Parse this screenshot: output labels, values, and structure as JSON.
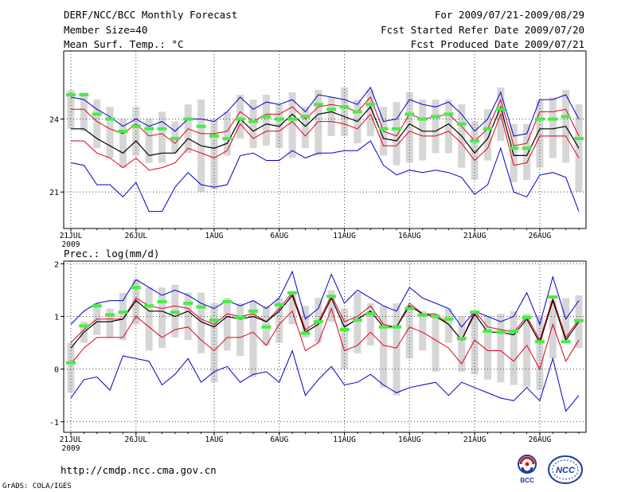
{
  "header": {
    "title": "DERF/NCC/BCC Monthly Forecast",
    "member_size": "Member Size=40",
    "variable": "Mean Surf. Temp.: °C",
    "period": "For 2009/07/21-2009/08/29",
    "start_date": "Fcst Started Refer Date 2009/07/20",
    "produced_date": "Fcst Produced Date 2009/07/21"
  },
  "footer": {
    "url": "http://cmdp.ncc.cma.gov.cn",
    "credit": "GrADS: COLA/IGES",
    "logo_bcc": "BCC",
    "logo_ncc": "NCC"
  },
  "colors": {
    "max_min": "#0000c8",
    "plus_minus_sd": "#e0001a",
    "mean": "#000000",
    "spread_bar": "#d6d6d6",
    "median": "#44ee44"
  },
  "x_ticks": [
    {
      "day": 0,
      "label": "21JUL",
      "sub": "2009"
    },
    {
      "day": 5,
      "label": "26JUL",
      "sub": ""
    },
    {
      "day": 11,
      "label": "1AUG",
      "sub": ""
    },
    {
      "day": 16,
      "label": "6AUG",
      "sub": ""
    },
    {
      "day": 21,
      "label": "11AUG",
      "sub": ""
    },
    {
      "day": 26,
      "label": "16AUG",
      "sub": ""
    },
    {
      "day": 31,
      "label": "21AUG",
      "sub": ""
    },
    {
      "day": 36,
      "label": "26AUG",
      "sub": ""
    }
  ],
  "chart_data": [
    {
      "type": "line",
      "title": "Mean Surf. Temp.: °C",
      "ylabel": "Mean Surf. Temp. (°C)",
      "ylim": [
        19.5,
        26.8
      ],
      "yticks": [
        21,
        24
      ],
      "days": 40,
      "series": [
        {
          "name": "max",
          "values": [
            24.9,
            24.8,
            24.4,
            24.1,
            23.7,
            24.0,
            23.7,
            23.9,
            23.5,
            24.0,
            24.0,
            23.9,
            24.3,
            24.9,
            24.4,
            24.7,
            24.6,
            24.8,
            24.3,
            25.0,
            24.9,
            24.8,
            24.6,
            25.3,
            23.9,
            24.0,
            24.8,
            24.6,
            24.5,
            24.7,
            24.2,
            23.5,
            24.0,
            25.1,
            23.3,
            23.4,
            24.8,
            24.8,
            25.0,
            24.0
          ]
        },
        {
          "name": "plus_sd",
          "values": [
            24.4,
            24.4,
            23.9,
            23.6,
            23.4,
            23.8,
            23.3,
            23.4,
            23.0,
            23.6,
            23.4,
            23.4,
            23.5,
            24.3,
            23.9,
            24.2,
            24.2,
            24.5,
            24.0,
            24.5,
            24.6,
            24.5,
            24.3,
            24.9,
            23.5,
            23.3,
            24.2,
            24.0,
            24.1,
            24.2,
            23.7,
            23.1,
            23.6,
            24.8,
            22.9,
            23.0,
            24.3,
            24.3,
            24.4,
            23.3
          ]
        },
        {
          "name": "mean",
          "values": [
            23.6,
            23.6,
            23.2,
            22.9,
            22.6,
            23.1,
            22.5,
            22.6,
            22.6,
            23.2,
            22.9,
            22.8,
            23.0,
            24.0,
            23.5,
            23.8,
            23.7,
            24.2,
            23.7,
            24.2,
            24.3,
            24.1,
            23.9,
            24.5,
            23.2,
            23.1,
            23.8,
            23.5,
            23.5,
            23.8,
            23.3,
            22.6,
            23.2,
            24.5,
            22.5,
            22.5,
            23.6,
            23.6,
            23.7,
            22.8
          ]
        },
        {
          "name": "minus_sd",
          "values": [
            23.1,
            23.1,
            22.6,
            22.4,
            22.0,
            22.4,
            21.9,
            22.0,
            22.2,
            22.8,
            22.6,
            22.4,
            22.7,
            23.8,
            23.2,
            23.5,
            23.5,
            23.9,
            23.3,
            23.9,
            23.9,
            23.8,
            23.6,
            24.2,
            22.9,
            22.9,
            23.5,
            23.3,
            23.3,
            23.5,
            23.0,
            22.3,
            22.8,
            24.2,
            22.1,
            22.2,
            23.3,
            23.3,
            23.3,
            22.4
          ]
        },
        {
          "name": "min",
          "values": [
            22.2,
            22.1,
            21.3,
            21.3,
            20.8,
            21.4,
            20.2,
            20.2,
            21.2,
            21.8,
            21.3,
            21.2,
            21.3,
            22.5,
            22.6,
            22.3,
            22.3,
            22.7,
            22.4,
            22.6,
            22.6,
            22.7,
            22.7,
            23.1,
            22.1,
            21.7,
            21.9,
            21.8,
            21.9,
            21.8,
            21.6,
            20.9,
            21.3,
            22.8,
            21.0,
            20.8,
            21.7,
            21.8,
            21.6,
            20.2
          ]
        },
        {
          "name": "median",
          "values": [
            25.0,
            25.0,
            24.2,
            24.0,
            23.5,
            23.7,
            23.6,
            23.6,
            23.2,
            24.0,
            23.7,
            23.3,
            23.2,
            24.0,
            23.9,
            24.1,
            24.0,
            24.0,
            24.1,
            24.6,
            24.4,
            24.5,
            24.3,
            24.6,
            23.6,
            23.6,
            24.2,
            24.0,
            24.1,
            24.2,
            23.8,
            23.1,
            23.6,
            24.4,
            22.8,
            22.8,
            24.0,
            24.0,
            24.1,
            23.2
          ]
        }
      ],
      "spread": {
        "top": [
          25.2,
          25.1,
          24.8,
          24.5,
          24.0,
          24.5,
          24.0,
          24.3,
          23.9,
          24.6,
          24.8,
          24.0,
          24.3,
          25.0,
          24.8,
          25.0,
          24.6,
          25.1,
          24.5,
          25.2,
          24.9,
          25.3,
          24.8,
          25.2,
          24.5,
          24.7,
          25.1,
          24.8,
          24.8,
          24.8,
          24.6,
          23.9,
          24.4,
          25.3,
          23.8,
          23.8,
          24.8,
          24.9,
          25.2,
          24.6
        ],
        "bottom": [
          23.6,
          23.5,
          22.8,
          22.4,
          22.0,
          22.5,
          22.2,
          22.2,
          22.6,
          22.6,
          21.0,
          21.1,
          22.5,
          23.2,
          22.8,
          22.9,
          22.8,
          22.4,
          22.8,
          22.5,
          23.3,
          23.3,
          23.0,
          23.3,
          22.5,
          22.1,
          22.2,
          22.3,
          22.6,
          22.6,
          22.0,
          21.5,
          22.3,
          23.1,
          21.4,
          21.5,
          22.0,
          22.4,
          22.2,
          21.0
        ]
      }
    },
    {
      "type": "line",
      "title": "Prec.: log(mm/d)",
      "ylabel": "Prec. log(mm/d)",
      "ylim": [
        -1.2,
        2.05
      ],
      "yticks": [
        -1,
        0,
        1,
        2
      ],
      "days": 40,
      "series": [
        {
          "name": "max",
          "values": [
            0.85,
            1.1,
            1.25,
            1.3,
            1.3,
            1.7,
            1.55,
            1.4,
            1.5,
            1.4,
            1.25,
            1.15,
            1.3,
            1.2,
            1.3,
            1.15,
            1.35,
            1.85,
            0.95,
            1.15,
            1.8,
            1.25,
            1.5,
            1.35,
            1.2,
            1.1,
            1.55,
            1.35,
            1.25,
            1.15,
            0.8,
            1.1,
            1.0,
            0.9,
            1.0,
            1.45,
            0.85,
            1.75,
            0.95,
            1.3
          ]
        },
        {
          "name": "plus_sd",
          "values": [
            0.5,
            0.75,
            0.95,
            0.95,
            0.95,
            1.35,
            1.2,
            1.15,
            1.2,
            1.15,
            0.95,
            0.85,
            1.05,
            1.0,
            1.05,
            0.9,
            1.15,
            1.45,
            0.75,
            0.9,
            1.4,
            0.9,
            1.0,
            1.2,
            0.85,
            0.8,
            1.25,
            1.05,
            1.05,
            0.85,
            0.55,
            1.1,
            0.8,
            0.75,
            0.7,
            1.0,
            0.55,
            1.35,
            0.6,
            0.95
          ]
        },
        {
          "name": "mean",
          "values": [
            0.4,
            0.7,
            0.9,
            0.9,
            0.95,
            1.3,
            1.1,
            1.1,
            1.0,
            1.1,
            0.9,
            0.8,
            1.0,
            0.95,
            1.0,
            0.9,
            1.1,
            1.4,
            0.7,
            0.85,
            1.35,
            0.8,
            0.95,
            1.1,
            0.8,
            0.8,
            1.2,
            1.05,
            1.0,
            0.85,
            0.55,
            1.05,
            0.7,
            0.7,
            0.65,
            0.95,
            0.5,
            1.3,
            0.55,
            0.9
          ]
        },
        {
          "name": "minus_sd",
          "values": [
            0.1,
            0.4,
            0.6,
            0.6,
            0.6,
            1.0,
            0.8,
            0.6,
            0.75,
            0.8,
            0.55,
            0.35,
            0.6,
            0.6,
            0.7,
            0.45,
            0.85,
            1.1,
            0.35,
            0.5,
            1.15,
            0.35,
            0.45,
            0.7,
            0.45,
            0.4,
            0.8,
            0.7,
            0.55,
            0.4,
            0.1,
            0.55,
            0.35,
            0.35,
            0.15,
            0.45,
            0.0,
            0.85,
            0.15,
            0.55
          ]
        },
        {
          "name": "min",
          "values": [
            -0.55,
            -0.2,
            -0.15,
            -0.4,
            0.25,
            0.2,
            0.15,
            -0.3,
            -0.1,
            0.2,
            -0.25,
            -0.05,
            0.05,
            -0.25,
            -0.1,
            -0.05,
            -0.25,
            0.35,
            -0.5,
            -0.2,
            0.05,
            -0.3,
            -0.25,
            -0.1,
            -0.3,
            -0.45,
            -0.35,
            -0.3,
            -0.25,
            -0.5,
            -0.25,
            -0.35,
            -0.45,
            -0.55,
            -0.6,
            -0.35,
            -0.6,
            0.2,
            -0.8,
            -0.5
          ]
        },
        {
          "name": "median",
          "values": [
            0.12,
            0.82,
            1.2,
            1.03,
            1.08,
            1.55,
            1.2,
            1.28,
            1.08,
            1.25,
            1.18,
            0.93,
            1.28,
            0.98,
            1.1,
            0.8,
            1.22,
            1.45,
            0.68,
            0.9,
            1.38,
            0.75,
            0.93,
            1.05,
            0.8,
            0.8,
            1.15,
            1.03,
            1.0,
            0.95,
            0.58,
            1.08,
            0.72,
            0.7,
            0.72,
            0.98,
            0.52,
            1.37,
            0.52,
            0.92
          ]
        }
      ],
      "spread": {
        "top": [
          0.5,
          0.9,
          1.25,
          1.15,
          1.45,
          1.7,
          1.55,
          1.55,
          1.6,
          1.45,
          1.45,
          1.25,
          1.35,
          1.25,
          1.3,
          1.2,
          1.35,
          1.45,
          1.2,
          1.35,
          1.5,
          1.15,
          1.45,
          1.25,
          1.2,
          1.25,
          1.2,
          1.1,
          1.05,
          1.15,
          1.0,
          1.05,
          1.0,
          1.05,
          1.1,
          1.05,
          1.0,
          1.3,
          1.35,
          1.4
        ],
        "bottom": [
          -0.45,
          0.5,
          0.65,
          0.6,
          0.55,
          0.85,
          0.35,
          0.4,
          0.6,
          0.55,
          0.3,
          -0.25,
          0.35,
          0.25,
          -0.15,
          0.45,
          0.5,
          0.85,
          0.6,
          0.5,
          0.9,
          0.0,
          0.3,
          0.45,
          -0.35,
          -0.5,
          0.2,
          0.35,
          -0.05,
          0.5,
          -0.05,
          -0.1,
          -0.2,
          -0.25,
          -0.3,
          -0.35,
          -0.4,
          0.2,
          0.55,
          0.4
        ]
      }
    }
  ]
}
